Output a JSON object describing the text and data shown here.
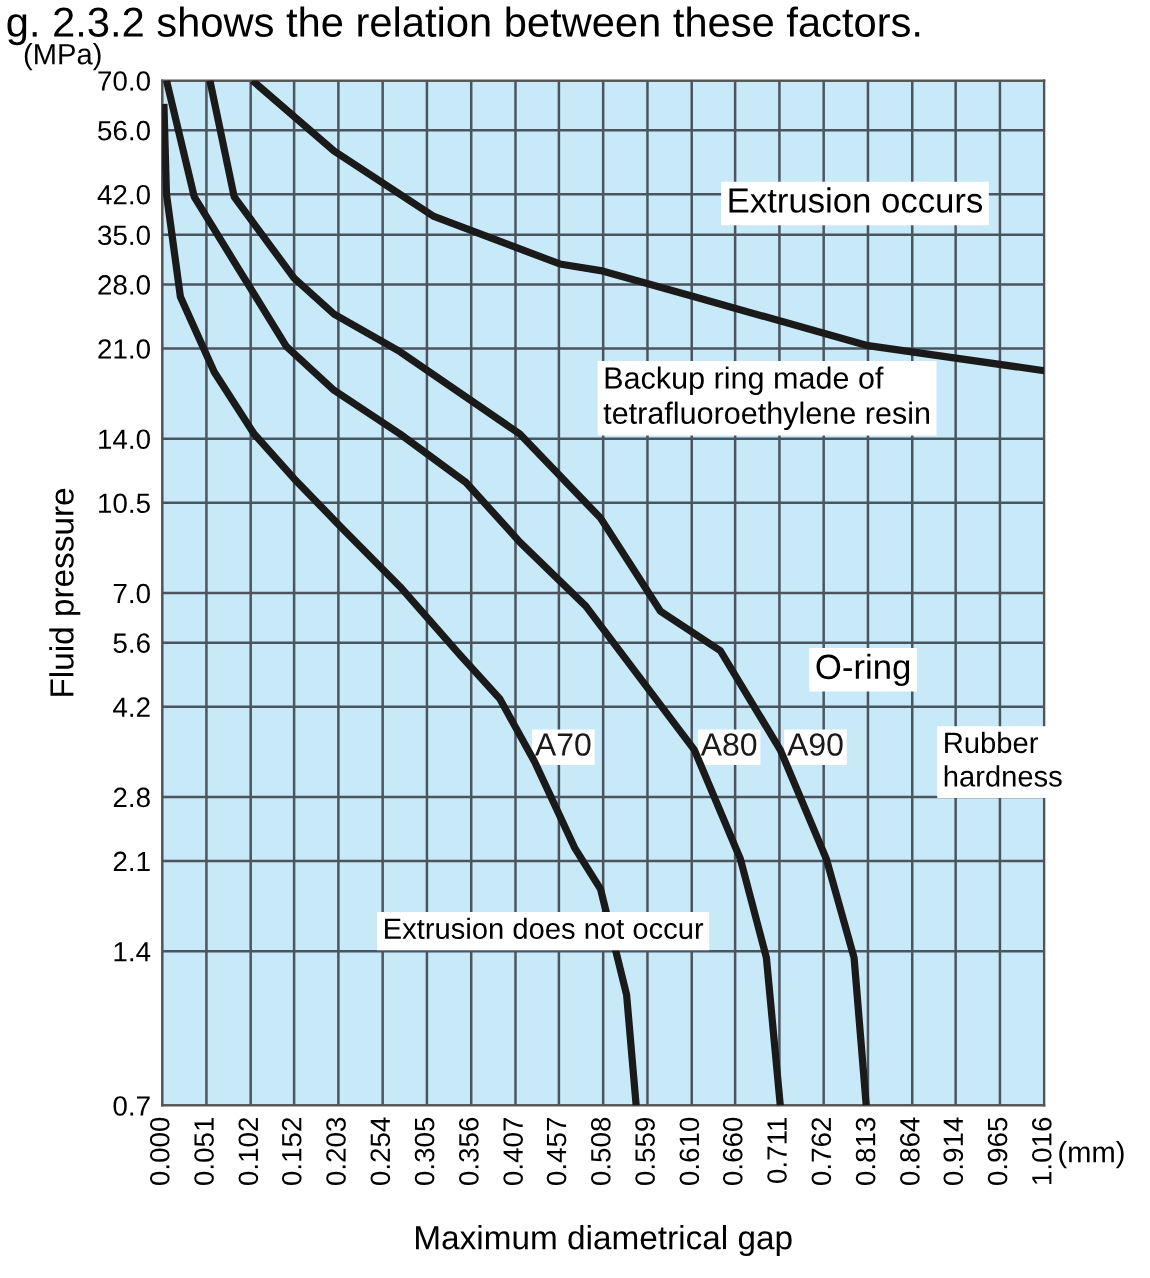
{
  "chart_data": {
    "type": "line",
    "xlabel": "Maximum diametrical gap",
    "ylabel": "Fluid pressure",
    "annotations": [
      "g. 2.3.2 shows the relation between these factors.",
      "(MPa)",
      "(mm)",
      "Extrusion occurs",
      "O-ring",
      "Rubber\nhardness",
      "Extrusion does not occur"
    ],
    "series": [
      {
        "name": "A70",
        "color": "#1a1a1a",
        "x": [
          0.002,
          0.005,
          0.021,
          0.06,
          0.106,
          0.152,
          0.205,
          0.274,
          0.343,
          0.389,
          0.429,
          0.475,
          0.505,
          0.535,
          0.546
        ],
        "values": [
          63,
          42,
          26.5,
          18.9,
          14.3,
          11.7,
          9.45,
          7.2,
          5.3,
          4.35,
          3.28,
          2.23,
          1.85,
          1.15,
          0.7
        ]
      },
      {
        "name": "A80",
        "color": "#1a1a1a",
        "x": [
          0.005,
          0.037,
          0.083,
          0.143,
          0.198,
          0.274,
          0.35,
          0.412,
          0.488,
          0.613,
          0.666,
          0.696,
          0.712
        ],
        "values": [
          70,
          41.5,
          31,
          21.2,
          17.4,
          14.3,
          11.5,
          8.8,
          6.6,
          3.46,
          2.12,
          1.36,
          0.7
        ]
      },
      {
        "name": "A90",
        "color": "#1a1a1a",
        "x": [
          0.055,
          0.083,
          0.152,
          0.198,
          0.274,
          0.412,
          0.505,
          0.574,
          0.643,
          0.712,
          0.765,
          0.797,
          0.811
        ],
        "values": [
          70,
          41.5,
          28.8,
          24.5,
          20.7,
          14.3,
          9.8,
          6.45,
          5.4,
          3.46,
          2.12,
          1.36,
          0.7
        ]
      },
      {
        "name": "Backup ring made of\ntetrafluoroethylene resin",
        "color": "#1a1a1a",
        "x": [
          0.104,
          0.198,
          0.313,
          0.458,
          0.505,
          0.613,
          0.811,
          1.016
        ],
        "values": [
          70,
          51,
          38,
          30.7,
          29.8,
          26.5,
          21.3,
          19
        ]
      }
    ],
    "log": "y",
    "grid": true,
    "line_style": "solid",
    "xlim": [
      0,
      1.016
    ],
    "ylim": [
      0.7,
      70
    ],
    "xticks": [
      {
        "value": 0,
        "label": "0.000"
      },
      0.051,
      0.102,
      0.152,
      0.203,
      0.254,
      0.305,
      0.356,
      0.407,
      0.457,
      0.508,
      0.559,
      {
        "value": 0.61,
        "label": "0.610"
      },
      {
        "value": 0.66,
        "label": "0.660"
      },
      0.711,
      0.762,
      0.813,
      0.864,
      0.914,
      0.965,
      1.016
    ],
    "yticks": [
      {
        "value": 0.7,
        "label": "0.7"
      },
      1.4,
      2.1,
      2.8,
      4.2,
      5.6,
      {
        "value": 7,
        "label": "7.0"
      },
      10.5,
      {
        "value": 14,
        "label": "14.0"
      },
      {
        "value": 21,
        "label": "21.0"
      },
      {
        "value": 28,
        "label": "28.0"
      },
      {
        "value": 35,
        "label": "35.0"
      },
      {
        "value": 42,
        "label": "42.0"
      },
      {
        "value": 56,
        "label": "56.0"
      },
      {
        "value": 70,
        "label": "70.0"
      }
    ]
  }
}
